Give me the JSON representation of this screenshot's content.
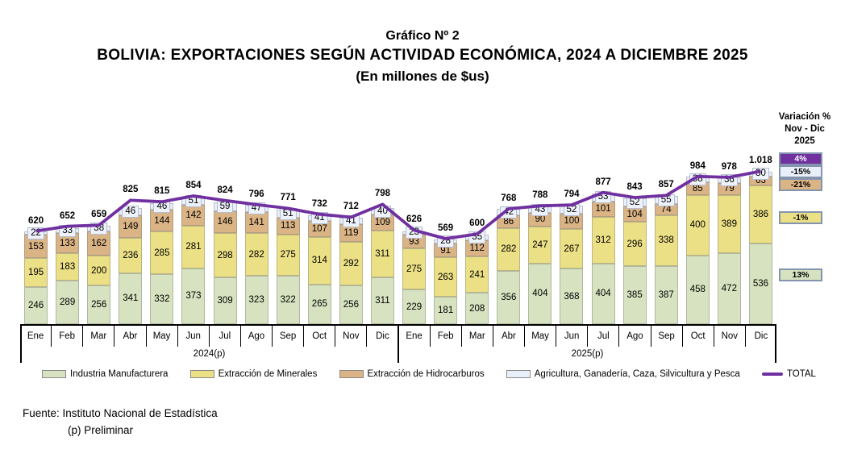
{
  "title": {
    "line1": "Gráfico Nº 2",
    "line2": "BOLIVIA: EXPORTACIONES SEGÚN ACTIVIDAD ECONÓMICA, 2024 A DICIEMBRE 2025",
    "line3": "(En millones de $us)"
  },
  "chart_data": {
    "type": "bar",
    "stacked": true,
    "categories": [
      "Ene",
      "Feb",
      "Mar",
      "Abr",
      "May",
      "Jun",
      "Jul",
      "Ago",
      "Sep",
      "Oct",
      "Nov",
      "Dic",
      "Ene",
      "Feb",
      "Mar",
      "Abr",
      "May",
      "Jun",
      "Jul",
      "Ago",
      "Sep",
      "Oct",
      "Nov",
      "Dic"
    ],
    "groups": [
      {
        "label": "2024(p)",
        "span": 12
      },
      {
        "label": "2025(p)",
        "span": 12
      }
    ],
    "series": [
      {
        "name": "Industria Manufacturera",
        "color": "#d7e3c0",
        "values": [
          246,
          289,
          256,
          341,
          332,
          373,
          309,
          323,
          322,
          265,
          256,
          311,
          229,
          181,
          208,
          356,
          404,
          368,
          404,
          385,
          387,
          458,
          472,
          536
        ]
      },
      {
        "name": "Extracción de Minerales",
        "color": "#ebe085",
        "values": [
          195,
          183,
          200,
          236,
          285,
          281,
          298,
          282,
          275,
          314,
          292,
          311,
          275,
          263,
          241,
          282,
          247,
          267,
          312,
          296,
          338,
          400,
          389,
          386
        ]
      },
      {
        "name": "Extracción de Hidrocarburos",
        "color": "#dbb486",
        "values": [
          153,
          133,
          162,
          149,
          144,
          142,
          146,
          141,
          113,
          107,
          119,
          109,
          93,
          91,
          112,
          86,
          90,
          100,
          101,
          104,
          74,
          85,
          79,
          63
        ]
      },
      {
        "name": "Agricultura, Ganadería, Caza, Silvicultura y Pesca",
        "color": "#e9effa",
        "values": [
          22,
          33,
          38,
          46,
          46,
          51,
          59,
          47,
          51,
          41,
          41,
          40,
          23,
          28,
          35,
          42,
          43,
          52,
          53,
          52,
          55,
          38,
          36,
          30
        ]
      }
    ],
    "line_series": {
      "name": "TOTAL",
      "color": "#7030a0",
      "values": [
        620,
        652,
        659,
        825,
        815,
        854,
        824,
        796,
        771,
        732,
        712,
        798,
        626,
        569,
        600,
        768,
        788,
        794,
        877,
        843,
        857,
        984,
        978,
        1018
      ]
    },
    "totals_display": [
      "620",
      "652",
      "659",
      "825",
      "815",
      "854",
      "824",
      "796",
      "771",
      "732",
      "712",
      "798",
      "626",
      "569",
      "600",
      "768",
      "788",
      "794",
      "877",
      "843",
      "857",
      "984",
      "978",
      "1.018"
    ],
    "ylim": [
      0,
      1160
    ],
    "grid": false,
    "legend_position": "bottom"
  },
  "variation": {
    "header": [
      "Variación %",
      "Nov - Dic",
      "2025"
    ],
    "items": [
      {
        "label": "4%",
        "bg": "#7030a0",
        "text_color": "#ffffff"
      },
      {
        "label": "-15%",
        "bg": "#e9effa",
        "text_color": "#000000"
      },
      {
        "label": "-21%",
        "bg": "#dbb486",
        "text_color": "#000000"
      },
      {
        "label": "-1%",
        "bg": "#ebe085",
        "text_color": "#000000"
      },
      {
        "label": "13%",
        "bg": "#d7e3c0",
        "text_color": "#000000"
      }
    ]
  },
  "legend": {
    "items": [
      {
        "label": "Industria Manufacturera",
        "color": "#d7e3c0",
        "type": "box"
      },
      {
        "label": "Extracción de Minerales",
        "color": "#ebe085",
        "type": "box"
      },
      {
        "label": "Extracción de Hidrocarburos",
        "color": "#dbb486",
        "type": "box"
      },
      {
        "label": "Agricultura, Ganadería, Caza, Silvicultura y Pesca",
        "color": "#e9effa",
        "type": "box"
      },
      {
        "label": "TOTAL",
        "color": "#7030a0",
        "type": "line"
      }
    ]
  },
  "footer": {
    "source": "Fuente: Instituto Nacional de Estadística",
    "note": "(p) Preliminar"
  }
}
